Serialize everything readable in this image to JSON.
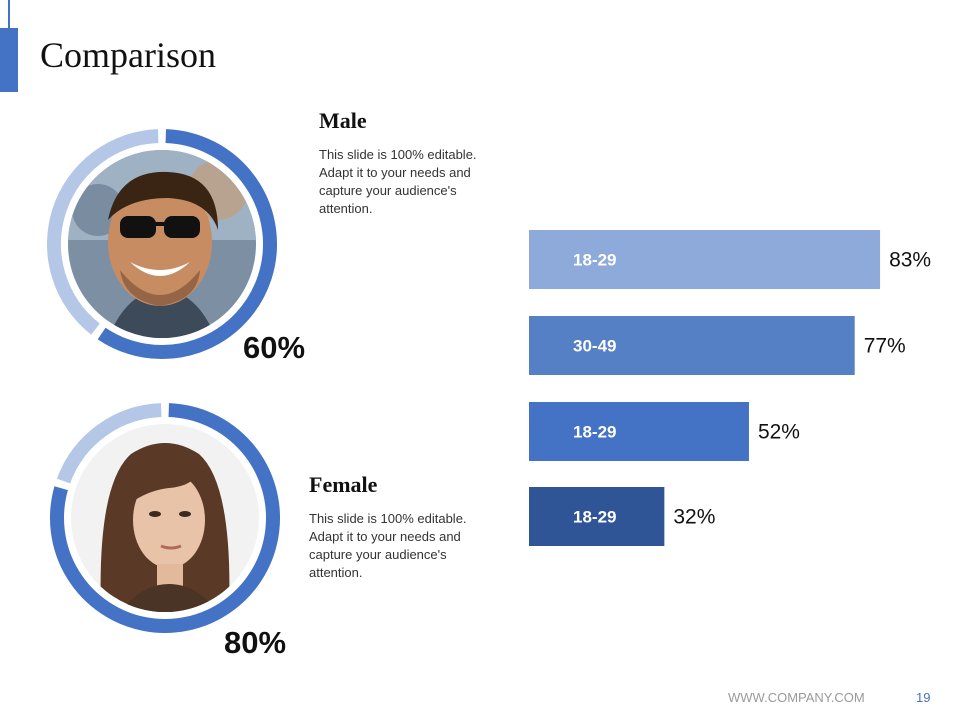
{
  "slide": {
    "title": "Comparison",
    "footer_url": "WWW.COMPANY.COM",
    "page_number": "19"
  },
  "male": {
    "heading": "Male",
    "description": "This slide is 100% editable. Adapt it to your needs and capture your audience's attention.",
    "percent_label": "60%",
    "percent_value": 60
  },
  "female": {
    "heading": "Female",
    "description": "This slide is 100% editable. Adapt it to your needs and capture your audience's attention.",
    "percent_label": "80%",
    "percent_value": 80
  },
  "colors": {
    "accent": "#4472c4",
    "ring_light": "#b4c7e7",
    "bar_colors": [
      "#8eaadb",
      "#5680c6",
      "#4472c4",
      "#2f5597"
    ]
  },
  "chart_data": [
    {
      "type": "pie",
      "values": [
        60,
        40
      ],
      "data_labels": [
        "60%"
      ]
    },
    {
      "type": "pie",
      "values": [
        80,
        20
      ],
      "data_labels": [
        "80%"
      ]
    },
    {
      "type": "bar",
      "orientation": "horizontal",
      "categories": [
        "18-29",
        "30-49",
        "18-29",
        "18-29"
      ],
      "values": [
        83,
        77,
        52,
        32
      ],
      "data_labels": [
        "83%",
        "77%",
        "52%",
        "32%"
      ],
      "xlim": [
        0,
        100
      ]
    }
  ]
}
